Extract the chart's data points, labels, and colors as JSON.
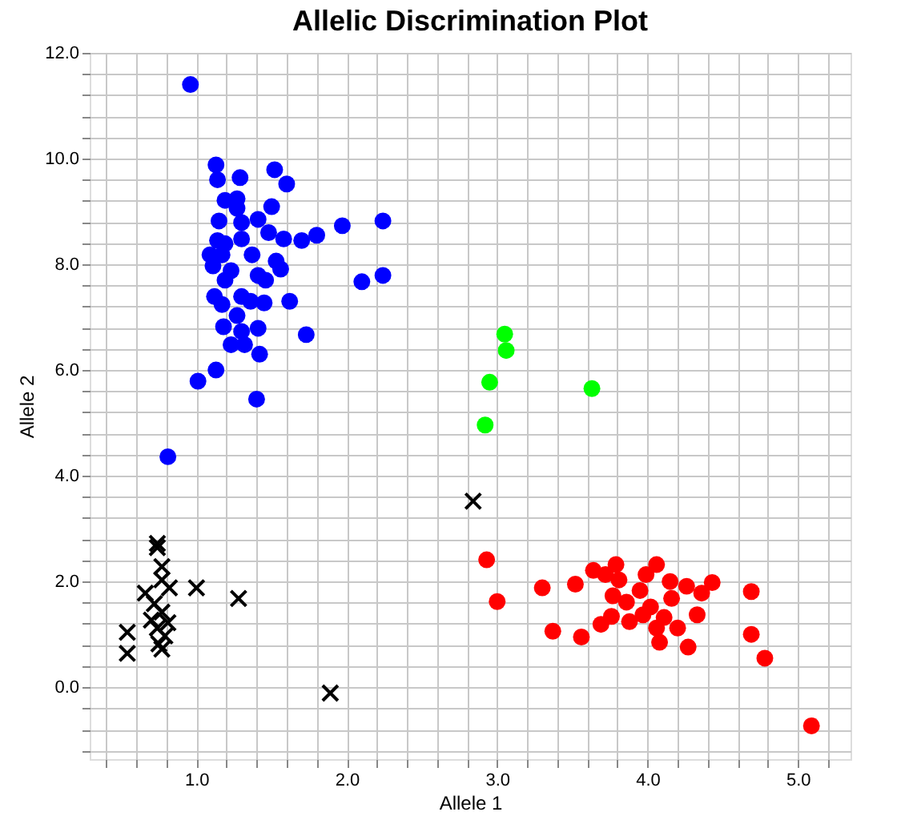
{
  "chart_data": {
    "type": "scatter",
    "title": "Allelic Discrimination Plot",
    "xlabel": "Allele 1",
    "ylabel": "Allele 2",
    "xlim": [
      0.29,
      5.35
    ],
    "ylim": [
      -1.36,
      12.0
    ],
    "xticks": [
      {
        "value": 0.4,
        "label": null
      },
      {
        "value": 0.6,
        "label": null
      },
      {
        "value": 0.8,
        "label": null
      },
      {
        "value": 1,
        "label": "1.0"
      },
      {
        "value": 1.2,
        "label": null
      },
      {
        "value": 1.4,
        "label": null
      },
      {
        "value": 1.6,
        "label": null
      },
      {
        "value": 1.8,
        "label": null
      },
      {
        "value": 2,
        "label": "2.0"
      },
      {
        "value": 2.2,
        "label": null
      },
      {
        "value": 2.4,
        "label": null
      },
      {
        "value": 2.6,
        "label": null
      },
      {
        "value": 2.8,
        "label": null
      },
      {
        "value": 3,
        "label": "3.0"
      },
      {
        "value": 3.2,
        "label": null
      },
      {
        "value": 3.4,
        "label": null
      },
      {
        "value": 3.6,
        "label": null
      },
      {
        "value": 3.8,
        "label": null
      },
      {
        "value": 4,
        "label": "4.0"
      },
      {
        "value": 4.2,
        "label": null
      },
      {
        "value": 4.4,
        "label": null
      },
      {
        "value": 4.6,
        "label": null
      },
      {
        "value": 4.8,
        "label": null
      },
      {
        "value": 5,
        "label": "5.0"
      },
      {
        "value": 5.2,
        "label": null
      }
    ],
    "yticks": [
      {
        "value": -1.2,
        "label": null
      },
      {
        "value": -0.8,
        "label": null
      },
      {
        "value": -0.4,
        "label": null
      },
      {
        "value": 0,
        "label": "0.0"
      },
      {
        "value": 0.4,
        "label": null
      },
      {
        "value": 0.8,
        "label": null
      },
      {
        "value": 1.2,
        "label": null
      },
      {
        "value": 1.6,
        "label": null
      },
      {
        "value": 2,
        "label": "2.0"
      },
      {
        "value": 2.4,
        "label": null
      },
      {
        "value": 2.8,
        "label": null
      },
      {
        "value": 3.2,
        "label": null
      },
      {
        "value": 3.6,
        "label": null
      },
      {
        "value": 4,
        "label": "4.0"
      },
      {
        "value": 4.4,
        "label": null
      },
      {
        "value": 4.8,
        "label": null
      },
      {
        "value": 5.2,
        "label": null
      },
      {
        "value": 5.6,
        "label": null
      },
      {
        "value": 6,
        "label": "6.0"
      },
      {
        "value": 6.4,
        "label": null
      },
      {
        "value": 6.8,
        "label": null
      },
      {
        "value": 7.2,
        "label": null
      },
      {
        "value": 7.6,
        "label": null
      },
      {
        "value": 8,
        "label": "8.0"
      },
      {
        "value": 8.4,
        "label": null
      },
      {
        "value": 8.8,
        "label": null
      },
      {
        "value": 9.2,
        "label": null
      },
      {
        "value": 9.6,
        "label": null
      },
      {
        "value": 10,
        "label": "10.0"
      },
      {
        "value": 10.4,
        "label": null
      },
      {
        "value": 10.8,
        "label": null
      },
      {
        "value": 11.2,
        "label": null
      },
      {
        "value": 11.6,
        "label": null
      },
      {
        "value": 12,
        "label": "12.0"
      }
    ],
    "grid": true,
    "marker": "circle",
    "series": [
      {
        "color": "#0000ff",
        "x": [
          0.96,
          1.13,
          1.14,
          1.29,
          1.52,
          1.6,
          1.19,
          1.27,
          1.27,
          1.5,
          1.15,
          1.3,
          1.41,
          1.48,
          1.58,
          1.7,
          1.8,
          1.97,
          2.24,
          1.14,
          1.19,
          1.3,
          1.09,
          1.17,
          1.37,
          1.11,
          1.23,
          1.53,
          1.56,
          1.41,
          1.46,
          1.19,
          2.24,
          2.1,
          1.12,
          1.3,
          1.36,
          1.45,
          1.62,
          1.17,
          1.27,
          1.18,
          1.41,
          1.3,
          1.73,
          1.23,
          1.32,
          1.42,
          1.13,
          1.01,
          1.4,
          0.81
        ],
        "values": [
          11.4,
          9.88,
          9.6,
          9.64,
          9.79,
          9.52,
          9.21,
          9.24,
          9.06,
          9.09,
          8.82,
          8.79,
          8.85,
          8.6,
          8.48,
          8.45,
          8.55,
          8.73,
          8.82,
          8.45,
          8.39,
          8.48,
          8.18,
          8.18,
          8.18,
          7.97,
          7.88,
          8.06,
          7.91,
          7.79,
          7.7,
          7.7,
          7.79,
          7.67,
          7.39,
          7.39,
          7.3,
          7.27,
          7.3,
          7.24,
          7.03,
          6.82,
          6.79,
          6.73,
          6.67,
          6.48,
          6.48,
          6.3,
          6.0,
          5.79,
          5.45,
          4.36
        ]
      },
      {
        "color": "#00ff00",
        "x": [
          3.05,
          3.06,
          2.95,
          2.92,
          3.63
        ],
        "values": [
          6.68,
          6.37,
          5.77,
          4.96,
          5.65
        ]
      },
      {
        "color": "#ff0000",
        "x": [
          2.93,
          3.0,
          3.3,
          3.37,
          3.52,
          3.56,
          3.64,
          3.79,
          3.72,
          3.81,
          3.77,
          3.69,
          3.76,
          3.88,
          3.86,
          3.95,
          3.99,
          4.06,
          4.02,
          4.06,
          4.08,
          4.15,
          4.16,
          4.2,
          4.26,
          4.27,
          4.33,
          4.36,
          4.43,
          4.11,
          3.97,
          4.69,
          4.69,
          4.78,
          5.09
        ],
        "values": [
          2.41,
          1.62,
          1.88,
          1.06,
          1.95,
          0.95,
          2.21,
          2.32,
          2.13,
          2.03,
          1.73,
          1.19,
          1.34,
          1.24,
          1.61,
          1.83,
          2.13,
          2.32,
          1.52,
          1.12,
          0.85,
          2.0,
          1.68,
          1.12,
          1.91,
          0.76,
          1.37,
          1.78,
          1.98,
          1.32,
          1.37,
          1.81,
          1.0,
          0.55,
          -0.73
        ]
      },
      {
        "color": "#000000",
        "marker": "cross",
        "x": [
          2.84,
          0.74,
          0.74,
          0.77,
          0.77,
          0.82,
          0.66,
          0.72,
          0.77,
          0.81,
          0.74,
          0.79,
          0.75,
          0.77,
          0.7,
          1.0,
          1.28,
          0.54,
          0.54,
          1.89
        ],
        "values": [
          3.52,
          2.72,
          2.64,
          2.28,
          2.03,
          1.88,
          1.78,
          1.58,
          1.42,
          1.22,
          1.12,
          0.97,
          0.82,
          0.72,
          1.27,
          1.88,
          1.68,
          1.04,
          0.64,
          -0.11
        ]
      }
    ]
  }
}
